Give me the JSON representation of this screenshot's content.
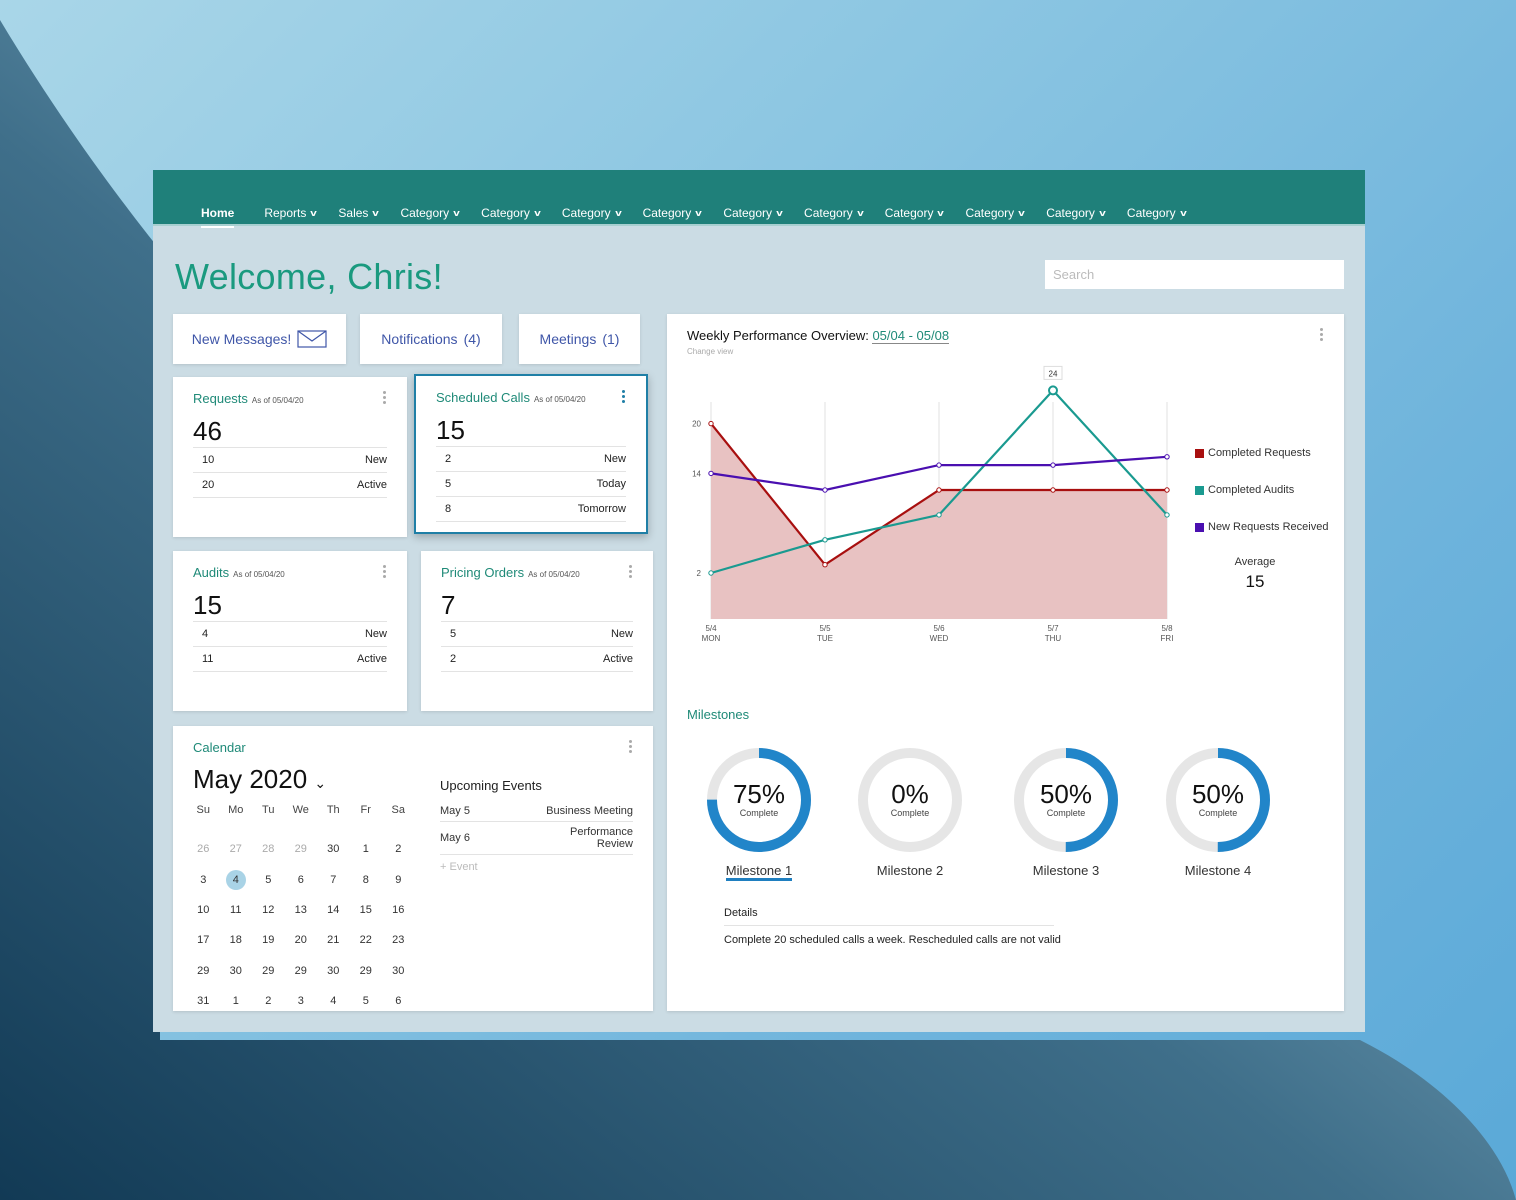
{
  "nav": {
    "items": [
      {
        "label": "Home",
        "active": true
      },
      {
        "label": "Reports"
      },
      {
        "label": "Sales"
      },
      {
        "label": "Category"
      },
      {
        "label": "Category"
      },
      {
        "label": "Category"
      },
      {
        "label": "Category"
      },
      {
        "label": "Category"
      },
      {
        "label": "Category"
      },
      {
        "label": "Category"
      },
      {
        "label": "Category"
      },
      {
        "label": "Category"
      },
      {
        "label": "Category"
      }
    ],
    "dropdown_icon": "chevron-down-icon",
    "color": "#1f807a"
  },
  "header": {
    "welcome": "Welcome, Chris!",
    "search_placeholder": "Search"
  },
  "quick": {
    "messages": "New Messages!",
    "messages_icon": "envelope-icon",
    "notifications": "Notifications",
    "notifications_count": "(4)",
    "meetings": "Meetings",
    "meetings_count": "(1)"
  },
  "cards": {
    "requests": {
      "title": "Requests",
      "asof": "As of 05/04/20",
      "total": "46",
      "rows": [
        {
          "v": "10",
          "l": "New"
        },
        {
          "v": "20",
          "l": "Active"
        }
      ]
    },
    "calls": {
      "title": "Scheduled Calls",
      "asof": "As of 05/04/20",
      "total": "15",
      "rows": [
        {
          "v": "2",
          "l": "New"
        },
        {
          "v": "5",
          "l": "Today"
        },
        {
          "v": "8",
          "l": "Tomorrow"
        }
      ]
    },
    "audits": {
      "title": "Audits",
      "asof": "As of 05/04/20",
      "total": "15",
      "rows": [
        {
          "v": "4",
          "l": "New"
        },
        {
          "v": "11",
          "l": "Active"
        }
      ]
    },
    "pricing": {
      "title": "Pricing Orders",
      "asof": "As of 05/04/20",
      "total": "7",
      "rows": [
        {
          "v": "5",
          "l": "New"
        },
        {
          "v": "2",
          "l": "Active"
        }
      ]
    }
  },
  "calendar": {
    "title": "Calendar",
    "month": "May 2020",
    "weekdays": [
      "Su",
      "Mo",
      "Tu",
      "We",
      "Th",
      "Fr",
      "Sa"
    ],
    "days": [
      "26",
      "27",
      "28",
      "29",
      "30",
      "1",
      "2",
      "3",
      "4",
      "5",
      "6",
      "7",
      "8",
      "9",
      "10",
      "11",
      "12",
      "13",
      "14",
      "15",
      "16",
      "17",
      "18",
      "19",
      "20",
      "21",
      "22",
      "23",
      "29",
      "30",
      "29",
      "29",
      "30",
      "29",
      "30",
      "31",
      "1",
      "2",
      "3",
      "4",
      "5",
      "6"
    ],
    "muted_days_count": 4,
    "selected": "4",
    "events_title": "Upcoming Events",
    "events": [
      {
        "date": "May 5",
        "name": "Business Meeting"
      },
      {
        "date": "May 6",
        "name": "Performance Review"
      }
    ],
    "add_event": "Event"
  },
  "performance": {
    "title": "Weekly Performance Overview:",
    "range": "05/04 - 05/08",
    "change_view": "Change view",
    "average_label": "Average",
    "average_value": "15"
  },
  "chart_data": {
    "type": "line",
    "categories": [
      [
        "5/4",
        "MON"
      ],
      [
        "5/5",
        "TUE"
      ],
      [
        "5/6",
        "WED"
      ],
      [
        "5/7",
        "THU"
      ],
      [
        "5/8",
        "FRI"
      ]
    ],
    "yticks": [
      2,
      14,
      20
    ],
    "ylim": [
      -3.5,
      26
    ],
    "grid": "vertical",
    "legend": "right",
    "series": [
      {
        "name": "Completed Requests",
        "color": "#a80f0f",
        "fill": "#e8c2c2",
        "values": [
          20,
          3,
          12,
          12,
          12
        ]
      },
      {
        "name": "Completed Audits",
        "color": "#1a9a90",
        "values": [
          2,
          6,
          9,
          24,
          9
        ]
      },
      {
        "name": "New Requests Received",
        "color": "#4a0fb0",
        "values": [
          14,
          12,
          15,
          15,
          16
        ]
      }
    ],
    "annotations": [
      {
        "series": "Completed Audits",
        "x": "5/7",
        "label": "24"
      }
    ]
  },
  "milestones": {
    "title": "Milestones",
    "items": [
      {
        "pct": "75%",
        "value": 75,
        "sub": "Complete",
        "label": "Milestone 1",
        "active": true
      },
      {
        "pct": "0%",
        "value": 0,
        "sub": "Complete",
        "label": "Milestone 2"
      },
      {
        "pct": "50%",
        "value": 50,
        "sub": "Complete",
        "label": "Milestone 3"
      },
      {
        "pct": "50%",
        "value": 50,
        "sub": "Complete",
        "label": "Milestone 4"
      }
    ],
    "details_label": "Details",
    "details_text": "Complete 20 scheduled calls a week. Rescheduled calls are not valid",
    "color": "#2185c9"
  }
}
